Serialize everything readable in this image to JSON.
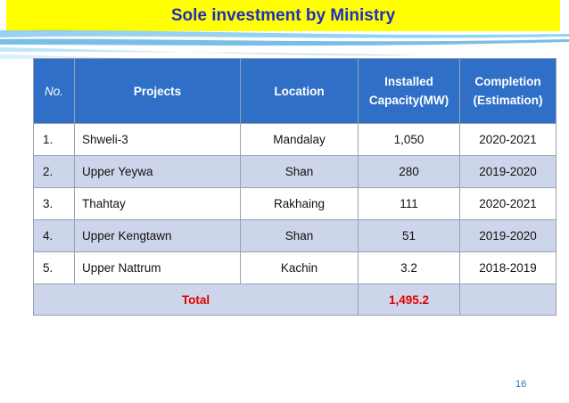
{
  "slide": {
    "title": "Sole investment by Ministry",
    "page_number": "16"
  },
  "table": {
    "headers": {
      "no": "No.",
      "projects": "Projects",
      "location": "Location",
      "capacity_line1": "Installed",
      "capacity_line2": "Capacity(MW)",
      "completion_line1": "Completion",
      "completion_line2": "(Estimation)"
    },
    "rows": [
      {
        "no": "1.",
        "project": "Shweli-3",
        "location": "Mandalay",
        "capacity": "1,050",
        "completion": "2020-2021"
      },
      {
        "no": "2.",
        "project": "Upper Yeywa",
        "location": "Shan",
        "capacity": "280",
        "completion": "2019-2020"
      },
      {
        "no": "3.",
        "project": "Thahtay",
        "location": "Rakhaing",
        "capacity": "111",
        "completion": "2020-2021"
      },
      {
        "no": "4.",
        "project": "Upper Kengtawn",
        "location": "Shan",
        "capacity": "51",
        "completion": "2019-2020"
      },
      {
        "no": "5.",
        "project": "Upper Nattrum",
        "location": "Kachin",
        "capacity": "3.2",
        "completion": "2018-2019"
      }
    ],
    "total": {
      "label": "Total",
      "capacity": "1,495.2"
    }
  },
  "colors": {
    "title_bg": "#ffff00",
    "title_text": "#1f2fbf",
    "header_bg": "#2f6fc7",
    "band_bg": "#cdd5ea",
    "total_text": "#e10000"
  }
}
